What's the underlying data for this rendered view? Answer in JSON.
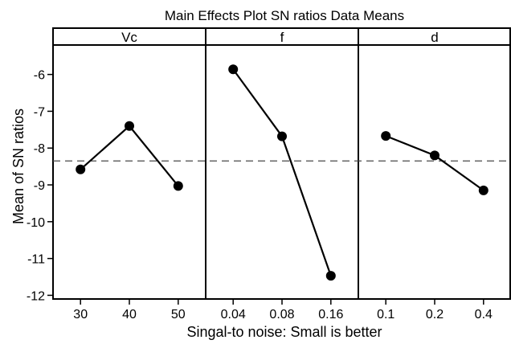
{
  "chart_data": {
    "type": "line",
    "title": "Main Effects Plot SN ratios Data Means",
    "xlabel": "Singal-to noise: Small is better",
    "ylabel": "Mean of SN ratios",
    "ylim": [
      -12.1,
      -5.2
    ],
    "yticks": [
      -6,
      -7,
      -8,
      -9,
      -10,
      -11,
      -12
    ],
    "reference_line": -8.35,
    "grid": false,
    "panels": [
      {
        "name": "Vc",
        "categories": [
          "30",
          "40",
          "50"
        ],
        "values": [
          -8.58,
          -7.4,
          -9.03
        ]
      },
      {
        "name": "f",
        "categories": [
          "0.04",
          "0.08",
          "0.16"
        ],
        "values": [
          -5.86,
          -7.68,
          -11.47
        ]
      },
      {
        "name": "d",
        "categories": [
          "0.1",
          "0.2",
          "0.4"
        ],
        "values": [
          -7.67,
          -8.2,
          -9.15
        ]
      }
    ]
  },
  "colors": {
    "line": "#000000",
    "reference": "#4a4a4a",
    "background": "#ffffff"
  }
}
